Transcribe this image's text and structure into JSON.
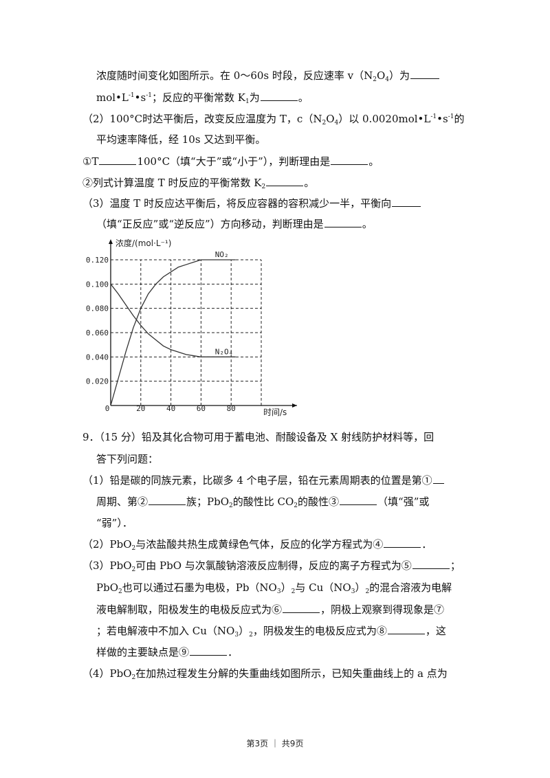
{
  "lines": [
    {
      "x": 140,
      "y": 100,
      "seg": [
        {
          "t": "浓度随时间变化如图所示。在 0～60s 时段，反应速率 v（N"
        },
        {
          "t": "2",
          "k": "sub"
        },
        {
          "t": "O"
        },
        {
          "t": "4",
          "k": "sub"
        },
        {
          "t": "）为"
        },
        {
          "t": "",
          "k": "blank-l"
        }
      ]
    },
    {
      "x": 140,
      "y": 132,
      "seg": [
        {
          "t": "mol•L"
        },
        {
          "t": "-1",
          "k": "sup"
        },
        {
          "t": "•s"
        },
        {
          "t": "-1",
          "k": "sup"
        },
        {
          "t": "；反应的平衡常数 K"
        },
        {
          "t": "1",
          "k": "sub"
        },
        {
          "t": "为"
        },
        {
          "t": "",
          "k": "blank"
        },
        {
          "t": "。"
        }
      ]
    },
    {
      "x": 120,
      "y": 163,
      "seg": [
        {
          "t": "（2）100°C时达平衡后，改变反应温度为 T，c（N"
        },
        {
          "t": "2",
          "k": "sub"
        },
        {
          "t": "O"
        },
        {
          "t": "4",
          "k": "sub"
        },
        {
          "t": "）以 0.0020mol•L"
        },
        {
          "t": "-1",
          "k": "sup"
        },
        {
          "t": "•s"
        },
        {
          "t": "-1",
          "k": "sup"
        },
        {
          "t": "的"
        }
      ]
    },
    {
      "x": 140,
      "y": 193,
      "seg": [
        {
          "t": "平均速率降低，经 10s 又达到平衡。"
        }
      ]
    },
    {
      "x": 120,
      "y": 225,
      "seg": [
        {
          "t": "①T"
        },
        {
          "t": "",
          "k": "blank"
        },
        {
          "t": "100°C（填“大于”或“小于”），判断理由是"
        },
        {
          "t": "",
          "k": "blank"
        },
        {
          "t": "。"
        }
      ]
    },
    {
      "x": 120,
      "y": 256,
      "seg": [
        {
          "t": "②列式计算温度 T 时反应的平衡常数 K"
        },
        {
          "t": "2",
          "k": "sub"
        },
        {
          "t": "",
          "k": "blank"
        },
        {
          "t": "。"
        }
      ]
    },
    {
      "x": 120,
      "y": 286,
      "seg": [
        {
          "t": "（3）温度 T 时反应达平衡后，将反应容器的容积减少一半，平衡向"
        },
        {
          "t": "",
          "k": "blank-l"
        }
      ]
    },
    {
      "x": 140,
      "y": 316,
      "seg": [
        {
          "t": "（填“正反应”或“逆反应”）方向移动，判断理由是"
        },
        {
          "t": "",
          "k": "blank"
        },
        {
          "t": "。"
        }
      ]
    },
    {
      "x": 120,
      "y": 626,
      "seg": [
        {
          "t": "9．（15 分）铅及其化合物可用于蓄电池、耐酸设备及 X 射线防护材料等，回"
        }
      ]
    },
    {
      "x": 140,
      "y": 658,
      "seg": [
        {
          "t": "答下列问题："
        }
      ]
    },
    {
      "x": 120,
      "y": 689,
      "seg": [
        {
          "t": "（1）铅是碳的同族元素，比碳多 4 个电子层，铅在元素周期表的位置是第①"
        },
        {
          "t": "",
          "k": "blank-s"
        }
      ]
    },
    {
      "x": 140,
      "y": 720,
      "seg": [
        {
          "t": "周期、第②"
        },
        {
          "t": "",
          "k": "blank"
        },
        {
          "t": "族；PbO"
        },
        {
          "t": "2",
          "k": "sub"
        },
        {
          "t": "的酸性比 CO"
        },
        {
          "t": "2",
          "k": "sub"
        },
        {
          "t": "的酸性③"
        },
        {
          "t": "",
          "k": "blank"
        },
        {
          "t": "（填“强”或"
        }
      ]
    },
    {
      "x": 140,
      "y": 751,
      "seg": [
        {
          "t": "“弱”）．"
        }
      ]
    },
    {
      "x": 120,
      "y": 782,
      "seg": [
        {
          "t": "（2）PbO"
        },
        {
          "t": "2",
          "k": "sub"
        },
        {
          "t": "与浓盐酸共热生成黄绿色气体，反应的化学方程式为④"
        },
        {
          "t": "",
          "k": "blank"
        },
        {
          "t": "．"
        }
      ]
    },
    {
      "x": 120,
      "y": 813,
      "seg": [
        {
          "t": "（3）PbO"
        },
        {
          "t": "2",
          "k": "sub"
        },
        {
          "t": "可由 PbO 与次氯酸钠溶液反应制得，反应的离子方程式为⑤"
        },
        {
          "t": "",
          "k": "blank"
        },
        {
          "t": "；"
        }
      ]
    },
    {
      "x": 140,
      "y": 845,
      "seg": [
        {
          "t": "PbO"
        },
        {
          "t": "2",
          "k": "sub"
        },
        {
          "t": "也可以通过石墨为电极，Pb（NO"
        },
        {
          "t": "3",
          "k": "sub"
        },
        {
          "t": "）"
        },
        {
          "t": "2",
          "k": "sub"
        },
        {
          "t": "与 Cu（NO"
        },
        {
          "t": "3",
          "k": "sub"
        },
        {
          "t": "）"
        },
        {
          "t": "2",
          "k": "sub"
        },
        {
          "t": "的混合溶液为电解"
        }
      ]
    },
    {
      "x": 140,
      "y": 877,
      "seg": [
        {
          "t": "液电解制取，阳极发生的电极反应式为⑥"
        },
        {
          "t": "",
          "k": "blank"
        },
        {
          "t": "，阴极上观察到得现象是⑦"
        }
      ]
    },
    {
      "x": 140,
      "y": 908,
      "seg": [
        {
          "t": "；若电解液中不加入 Cu（NO"
        },
        {
          "t": "3",
          "k": "sub"
        },
        {
          "t": "）"
        },
        {
          "t": "2",
          "k": "sub"
        },
        {
          "t": "，阴极发生的电极反应式为⑧"
        },
        {
          "t": "",
          "k": "blank"
        },
        {
          "t": "，这"
        }
      ]
    },
    {
      "x": 140,
      "y": 939,
      "seg": [
        {
          "t": "样做的主要缺点是⑨"
        },
        {
          "t": "",
          "k": "blank"
        },
        {
          "t": "．"
        }
      ]
    },
    {
      "x": 120,
      "y": 970,
      "seg": [
        {
          "t": "（4）PbO"
        },
        {
          "t": "2",
          "k": "sub"
        },
        {
          "t": "在加热过程发生分解的失重曲线如图所示，已知失重曲线上的 a 点为"
        }
      ]
    }
  ],
  "chart_data": {
    "type": "line",
    "ylabel": "浓度/(mol·L⁻¹)",
    "xlabel": "时间/s",
    "xlim": [
      0,
      100
    ],
    "ylim": [
      0,
      0.12
    ],
    "xticks": [
      "0",
      "20",
      "40",
      "60",
      "80"
    ],
    "yticks": [
      "0.020",
      "0.040",
      "0.060",
      "0.080",
      "0.100",
      "0.120"
    ],
    "grid": true,
    "series": [
      {
        "name": "NO₂",
        "x": [
          0,
          5,
          10,
          15,
          20,
          25,
          30,
          35,
          40,
          45,
          50,
          55,
          60,
          83
        ],
        "y": [
          0,
          0.022,
          0.044,
          0.064,
          0.08,
          0.092,
          0.1,
          0.106,
          0.11,
          0.114,
          0.116,
          0.118,
          0.12,
          0.12
        ]
      },
      {
        "name": "N₂O₄",
        "x": [
          0,
          5,
          10,
          15,
          20,
          25,
          30,
          35,
          40,
          45,
          50,
          55,
          60,
          83
        ],
        "y": [
          0.1,
          0.092,
          0.083,
          0.074,
          0.066,
          0.059,
          0.054,
          0.049,
          0.046,
          0.044,
          0.042,
          0.041,
          0.04,
          0.04
        ]
      }
    ]
  },
  "footer": "第3页 ｜ 共9页"
}
